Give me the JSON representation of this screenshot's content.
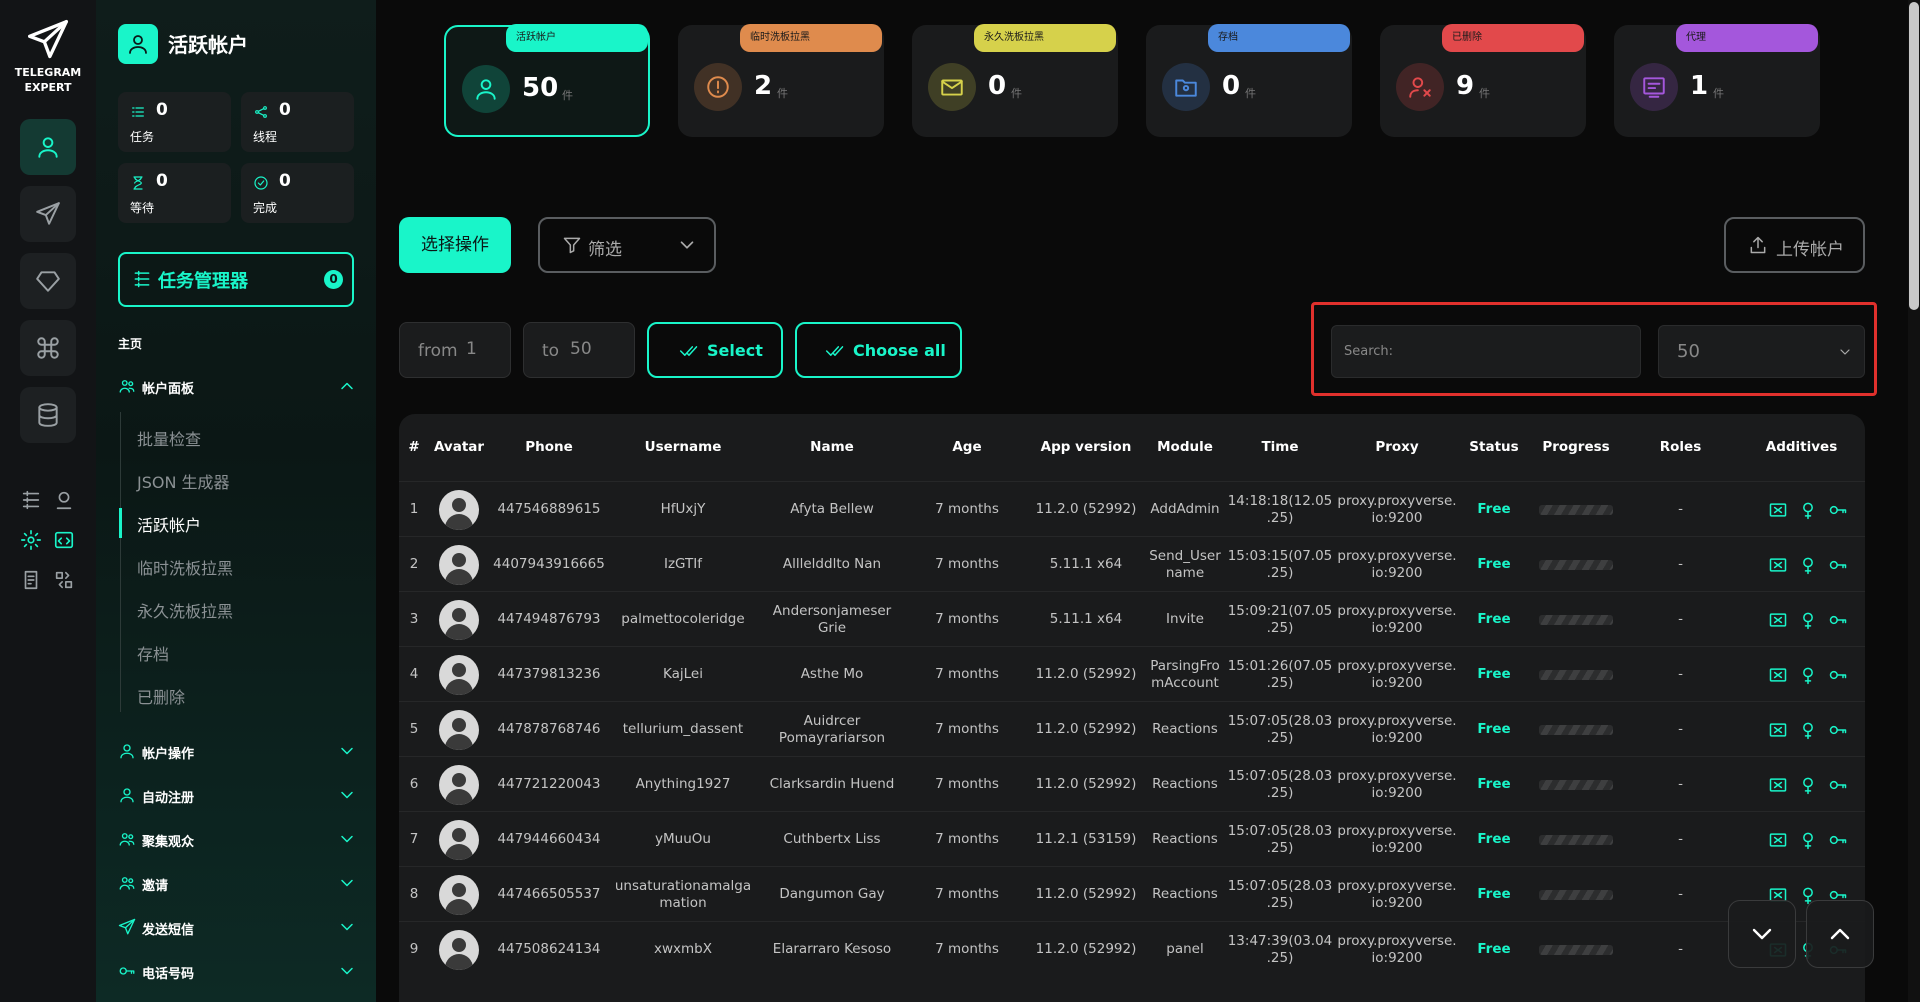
{
  "rail": {
    "logo": [
      "TELEGRAM",
      "EXPERT"
    ]
  },
  "panel": {
    "title": "活跃帐户",
    "stats": [
      {
        "value": 0,
        "label": "任务"
      },
      {
        "value": 0,
        "label": "线程"
      },
      {
        "value": 0,
        "label": "等待"
      },
      {
        "value": 0,
        "label": "完成"
      }
    ],
    "task_manager": {
      "label": "任务管理器",
      "badge": 0
    },
    "home": "主页",
    "account_panel": {
      "label": "帐户面板",
      "items": [
        "批量检查",
        "JSON 生成器",
        "活跃帐户",
        "临时洗板拉黑",
        "永久洗板拉黑",
        "存档",
        "已删除"
      ],
      "active": 2
    },
    "sections": [
      "帐户操作",
      "自动注册",
      "聚集观众",
      "邀请",
      "发送短信",
      "电话号码"
    ]
  },
  "cards": [
    {
      "tag": "活跃帐户",
      "count": 50,
      "unit": "件",
      "color": "#19f5c9"
    },
    {
      "tag": "临时洗板拉黑",
      "count": 2,
      "unit": "件",
      "color": "#df8b4d"
    },
    {
      "tag": "永久洗板拉黑",
      "count": 0,
      "unit": "件",
      "color": "#d6d14b"
    },
    {
      "tag": "存档",
      "count": 0,
      "unit": "件",
      "color": "#4b88dc"
    },
    {
      "tag": "已删除",
      "count": 9,
      "unit": "件",
      "color": "#e2494b"
    },
    {
      "tag": "代理",
      "count": 1,
      "unit": "件",
      "color": "#a457dc"
    }
  ],
  "toolbar": {
    "select_action": "选择操作",
    "filter": "筛选",
    "upload": "上传帐户",
    "from": {
      "label": "from",
      "value": 1
    },
    "to": {
      "label": "to",
      "value": 50
    },
    "select": "Select",
    "choose_all": "Choose all",
    "search": "Search:",
    "page_size": 50
  },
  "table": {
    "headers": [
      "#",
      "Avatar",
      "Phone",
      "Username",
      "Name",
      "Age",
      "App version",
      "Module",
      "Time",
      "Proxy",
      "Status",
      "Progress",
      "Roles",
      "Additives"
    ],
    "rows": [
      [
        1,
        "447546889615",
        "HfUxjY",
        "Afyta Bellew",
        "7 months",
        "11.2.0 (52992)",
        "AddAdmin",
        "14:18:18(12.05.25)",
        "proxy.proxyverse.io:9200",
        "Free",
        "-"
      ],
      [
        2,
        "4407943916665",
        "IzGTIf",
        "Alllelddlto Nan",
        "7 months",
        "5.11.1 x64",
        "Send_Username",
        "15:03:15(07.05.25)",
        "proxy.proxyverse.io:9200",
        "Free",
        "-"
      ],
      [
        3,
        "447494876793",
        "palmettocoleridge",
        "Andersonjameser Grie",
        "7 months",
        "5.11.1 x64",
        "Invite",
        "15:09:21(07.05.25)",
        "proxy.proxyverse.io:9200",
        "Free",
        "-"
      ],
      [
        4,
        "447379813236",
        "KajLei",
        "Asthe Mo",
        "7 months",
        "11.2.0 (52992)",
        "ParsingFromAccount",
        "15:01:26(07.05.25)",
        "proxy.proxyverse.io:9200",
        "Free",
        "-"
      ],
      [
        5,
        "447878768746",
        "tellurium_dassent",
        "Auidrcer Pomayrariarson",
        "7 months",
        "11.2.0 (52992)",
        "Reactions",
        "15:07:05(28.03.25)",
        "proxy.proxyverse.io:9200",
        "Free",
        "-"
      ],
      [
        6,
        "447721220043",
        "Anything1927",
        "Clarksardin Huend",
        "7 months",
        "11.2.0 (52992)",
        "Reactions",
        "15:07:05(28.03.25)",
        "proxy.proxyverse.io:9200",
        "Free",
        "-"
      ],
      [
        7,
        "447944660434",
        "yMuuOu",
        "Cuthbertx Liss",
        "7 months",
        "11.2.1 (53159)",
        "Reactions",
        "15:07:05(28.03.25)",
        "proxy.proxyverse.io:9200",
        "Free",
        "-"
      ],
      [
        8,
        "447466505537",
        "unsaturationamalgamation",
        "Dangumon Gay",
        "7 months",
        "11.2.0 (52992)",
        "Reactions",
        "15:07:05(28.03.25)",
        "proxy.proxyverse.io:9200",
        "Free",
        "-"
      ],
      [
        9,
        "447508624134",
        "xwxmbX",
        "Elararraro Kesoso",
        "7 months",
        "11.2.0 (52992)",
        "panel",
        "13:47:39(03.04.25)",
        "proxy.proxyverse.io:9200",
        "Free",
        "-"
      ]
    ]
  }
}
